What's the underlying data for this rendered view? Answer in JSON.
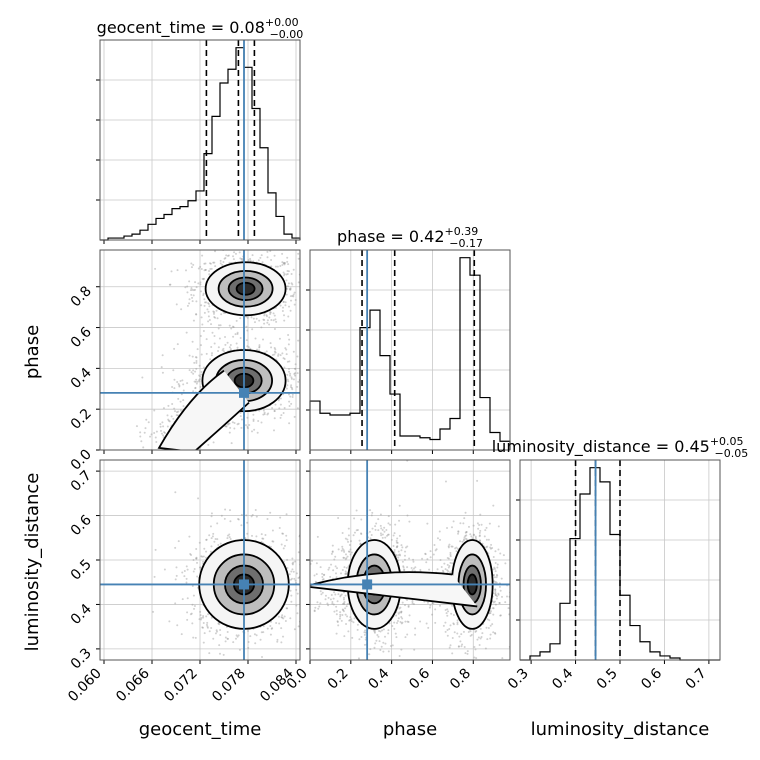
{
  "chart_data": {
    "type": "corner",
    "parameters": [
      "geocent_time",
      "phase",
      "luminosity_distance"
    ],
    "axis_labels": [
      "geocent_time",
      "phase",
      "luminosity_distance"
    ],
    "titles": [
      {
        "name": "geocent_time",
        "median": "0.08",
        "plus": "+0.00",
        "minus": "−0.00"
      },
      {
        "name": "phase",
        "median": "0.42",
        "plus": "+0.39",
        "minus": "−0.17"
      },
      {
        "name": "luminosity_distance",
        "median": "0.45",
        "plus": "+0.05",
        "minus": "−0.05"
      }
    ],
    "ranges": {
      "geocent_time": [
        0.0595,
        0.0845
      ],
      "phase": [
        0.0,
        0.98
      ],
      "luminosity_distance": [
        0.275,
        0.725
      ]
    },
    "ticks": {
      "geocent_time": [
        0.06,
        0.066,
        0.072,
        0.078,
        0.084
      ],
      "phase": [
        0.0,
        0.2,
        0.4,
        0.6,
        0.8
      ],
      "luminosity_distance": [
        0.3,
        0.4,
        0.5,
        0.6,
        0.7
      ]
    },
    "tick_labels": {
      "geocent_time": [
        "0.060",
        "0.066",
        "0.072",
        "0.078",
        "0.084"
      ],
      "phase": [
        "0.0",
        "0.2",
        "0.4",
        "0.6",
        "0.8"
      ],
      "luminosity_distance": [
        "0.3",
        "0.4",
        "0.5",
        "0.6",
        "0.7"
      ]
    },
    "truths": {
      "geocent_time": 0.0775,
      "phase": 0.28,
      "luminosity_distance": 0.445
    },
    "quantiles": {
      "geocent_time": [
        0.0728,
        0.0768,
        0.0788
      ],
      "phase": [
        0.255,
        0.415,
        0.805
      ],
      "luminosity_distance": [
        0.4,
        0.445,
        0.5
      ]
    },
    "histograms": {
      "geocent_time": {
        "edges": [
          0.0595,
          0.0605,
          0.0615,
          0.0625,
          0.0635,
          0.0645,
          0.0655,
          0.0665,
          0.0675,
          0.0685,
          0.0695,
          0.0705,
          0.0715,
          0.0725,
          0.0735,
          0.0745,
          0.0755,
          0.0765,
          0.0775,
          0.0785,
          0.0795,
          0.0805,
          0.0815,
          0.0825,
          0.0835,
          0.0845
        ],
        "counts": [
          0,
          1,
          1,
          2,
          3,
          5,
          8,
          11,
          13,
          16,
          17,
          20,
          25,
          44,
          63,
          80,
          87,
          98,
          88,
          67,
          47,
          24,
          12,
          3,
          1
        ]
      },
      "phase": {
        "edges": [
          0.0,
          0.049,
          0.098,
          0.147,
          0.196,
          0.245,
          0.294,
          0.343,
          0.392,
          0.441,
          0.49,
          0.539,
          0.588,
          0.637,
          0.686,
          0.735,
          0.784,
          0.833,
          0.882,
          0.931,
          0.98
        ],
        "counts": [
          28,
          21,
          20,
          20,
          21,
          70,
          80,
          54,
          32,
          8,
          8,
          7,
          6,
          12,
          18,
          110,
          100,
          30,
          10,
          5
        ]
      },
      "luminosity_distance": {
        "edges": [
          0.275,
          0.2975,
          0.32,
          0.3425,
          0.365,
          0.3875,
          0.41,
          0.4325,
          0.455,
          0.4775,
          0.5,
          0.5225,
          0.545,
          0.5675,
          0.59,
          0.6125,
          0.635,
          0.6575,
          0.68,
          0.7025,
          0.725
        ],
        "counts": [
          0,
          2,
          4,
          8,
          28,
          60,
          82,
          95,
          88,
          62,
          32,
          17,
          9,
          4,
          2,
          1,
          0,
          0,
          0,
          0
        ]
      }
    },
    "contours_2d": {
      "phase_vs_geocent_time": {
        "modes": [
          {
            "center": [
              0.0777,
              0.79
            ],
            "spread": [
              0.0025,
              0.065
            ]
          },
          {
            "center": [
              0.0775,
              0.34
            ],
            "spread": [
              0.0026,
              0.075
            ]
          }
        ],
        "tail_toward": [
          0.0675,
          0.02
        ]
      },
      "luminosity_distance_vs_geocent_time": {
        "modes": [
          {
            "center": [
              0.0775,
              0.445
            ],
            "spread": [
              0.0028,
              0.05
            ]
          }
        ]
      },
      "luminosity_distance_vs_phase": {
        "modes": [
          {
            "center": [
              0.315,
              0.445
            ],
            "spread": [
              0.065,
              0.05
            ]
          },
          {
            "center": [
              0.795,
              0.445
            ],
            "spread": [
              0.05,
              0.05
            ]
          }
        ],
        "tail_toward": [
          0.0,
          0.445
        ]
      }
    },
    "grid": true,
    "colors": {
      "truth": "#4682b4",
      "hist": "#000000",
      "scatter": "#9a9a9a",
      "grid": "#c8c8c8"
    }
  }
}
